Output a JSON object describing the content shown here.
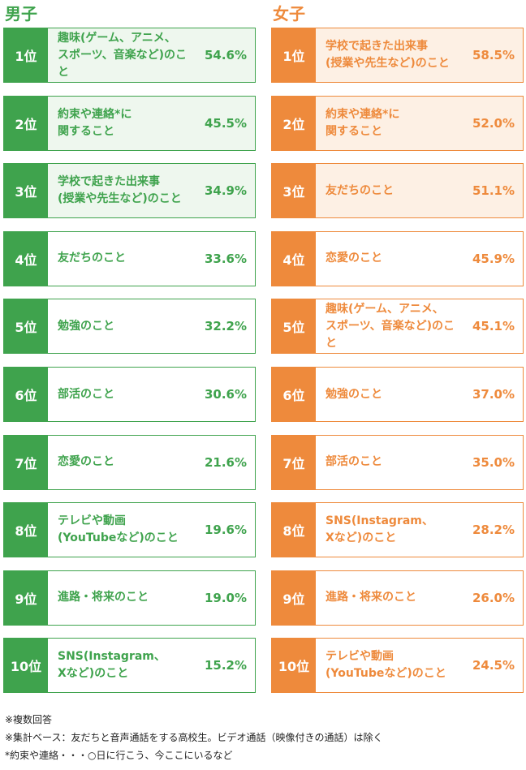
{
  "boys": {
    "title": "男子",
    "rows": [
      {
        "rank": "1位",
        "label": "趣味(ゲーム、アニメ、\nスポーツ、音楽など)のこと",
        "pct": "54.6%"
      },
      {
        "rank": "2位",
        "label": "約束や連絡*に\n関すること",
        "pct": "45.5%"
      },
      {
        "rank": "3位",
        "label": "学校で起きた出来事\n(授業や先生など)のこと",
        "pct": "34.9%"
      },
      {
        "rank": "4位",
        "label": "友だちのこと",
        "pct": "33.6%"
      },
      {
        "rank": "5位",
        "label": "勉強のこと",
        "pct": "32.2%"
      },
      {
        "rank": "6位",
        "label": "部活のこと",
        "pct": "30.6%"
      },
      {
        "rank": "7位",
        "label": "恋愛のこと",
        "pct": "21.6%"
      },
      {
        "rank": "8位",
        "label": "テレビや動画\n(YouTubeなど)のこと",
        "pct": "19.6%"
      },
      {
        "rank": "9位",
        "label": "進路・将来のこと",
        "pct": "19.0%"
      },
      {
        "rank": "10位",
        "label": "SNS(Instagram、\nXなど)のこと",
        "pct": "15.2%"
      }
    ]
  },
  "girls": {
    "title": "女子",
    "rows": [
      {
        "rank": "1位",
        "label": "学校で起きた出来事\n(授業や先生など)のこと",
        "pct": "58.5%"
      },
      {
        "rank": "2位",
        "label": "約束や連絡*に\n関すること",
        "pct": "52.0%"
      },
      {
        "rank": "3位",
        "label": "友だちのこと",
        "pct": "51.1%"
      },
      {
        "rank": "4位",
        "label": "恋愛のこと",
        "pct": "45.9%"
      },
      {
        "rank": "5位",
        "label": "趣味(ゲーム、アニメ、\nスポーツ、音楽など)のこと",
        "pct": "45.1%"
      },
      {
        "rank": "6位",
        "label": "勉強のこと",
        "pct": "37.0%"
      },
      {
        "rank": "7位",
        "label": "部活のこと",
        "pct": "35.0%"
      },
      {
        "rank": "8位",
        "label": "SNS(Instagram、\nXなど)のこと",
        "pct": "28.2%"
      },
      {
        "rank": "9位",
        "label": "進路・将来のこと",
        "pct": "26.0%"
      },
      {
        "rank": "10位",
        "label": "テレビや動画\n(YouTubeなど)のこと",
        "pct": "24.5%"
      }
    ]
  },
  "notes": {
    "multiple": "※複数回答",
    "base": "※集計ベース：友だちと音声通話をする高校生。ビデオ通話（映像付きの通話）は除く",
    "footnote": "*約束や連絡・・・○日に行こう、今ここにいるなど"
  }
}
